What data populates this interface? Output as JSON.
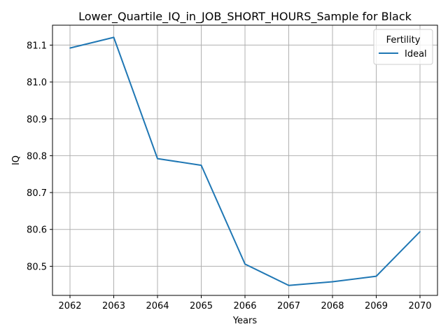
{
  "chart_data": {
    "type": "line",
    "title": "Lower_Quartile_IQ_in_JOB_SHORT_HOURS_Sample for Black",
    "xlabel": "Years",
    "ylabel": "IQ",
    "x": [
      2062,
      2063,
      2064,
      2065,
      2066,
      2067,
      2068,
      2069,
      2070
    ],
    "series": [
      {
        "name": "Ideal",
        "color": "#1f77b4",
        "values": [
          81.092,
          81.121,
          80.792,
          80.774,
          80.506,
          80.448,
          80.458,
          80.473,
          80.594
        ]
      }
    ],
    "xlim": [
      2061.6,
      2070.4
    ],
    "ylim": [
      80.421,
      81.154
    ],
    "xticks": [
      "2062",
      "2063",
      "2064",
      "2065",
      "2066",
      "2067",
      "2068",
      "2069",
      "2070"
    ],
    "yticks": [
      "80.5",
      "80.6",
      "80.7",
      "80.8",
      "80.9",
      "81.0",
      "81.1"
    ],
    "grid": true,
    "legend": {
      "title": "Fertility",
      "placement": "top-right"
    }
  }
}
